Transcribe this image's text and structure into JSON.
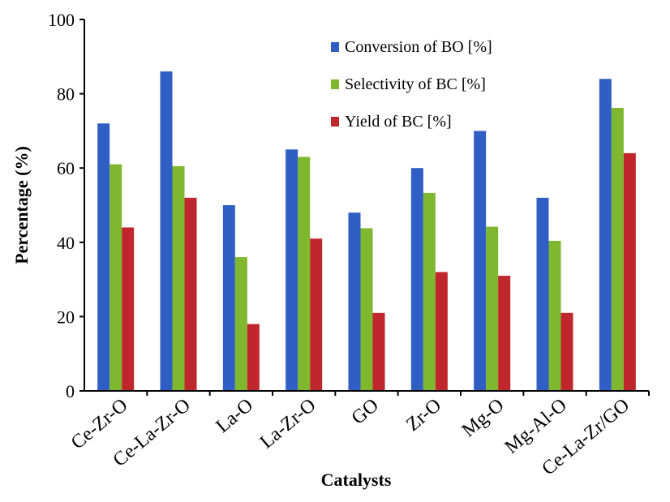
{
  "chart_data": {
    "type": "bar",
    "title": "",
    "xlabel": "Catalysts",
    "ylabel": "Percentage (%)",
    "ylim": [
      0,
      100
    ],
    "yticks": [
      0,
      20,
      40,
      60,
      80,
      100
    ],
    "grid": false,
    "legend_position": "top-right",
    "categories": [
      "Ce-Zr-O",
      "Ce-La-Zr-O",
      "La-O",
      "La-Zr-O",
      "GO",
      "Zr-O",
      "Mg-O",
      "Mg-Al-O",
      "Ce-La-Zr/GO"
    ],
    "series": [
      {
        "name": "Conversion of BO [%]",
        "color": "#2f5fc4",
        "values": [
          72,
          86,
          50,
          65,
          48,
          60,
          70,
          52,
          84
        ]
      },
      {
        "name": "Selectivity of BC [%]",
        "color": "#7fb72e",
        "values": [
          61,
          60.5,
          36,
          63,
          43.8,
          53.3,
          44.2,
          40.4,
          76.2
        ]
      },
      {
        "name": "Yield of BC [%]",
        "color": "#c0272d",
        "values": [
          44,
          52,
          18,
          41,
          21,
          32,
          31,
          21,
          64
        ]
      }
    ]
  }
}
